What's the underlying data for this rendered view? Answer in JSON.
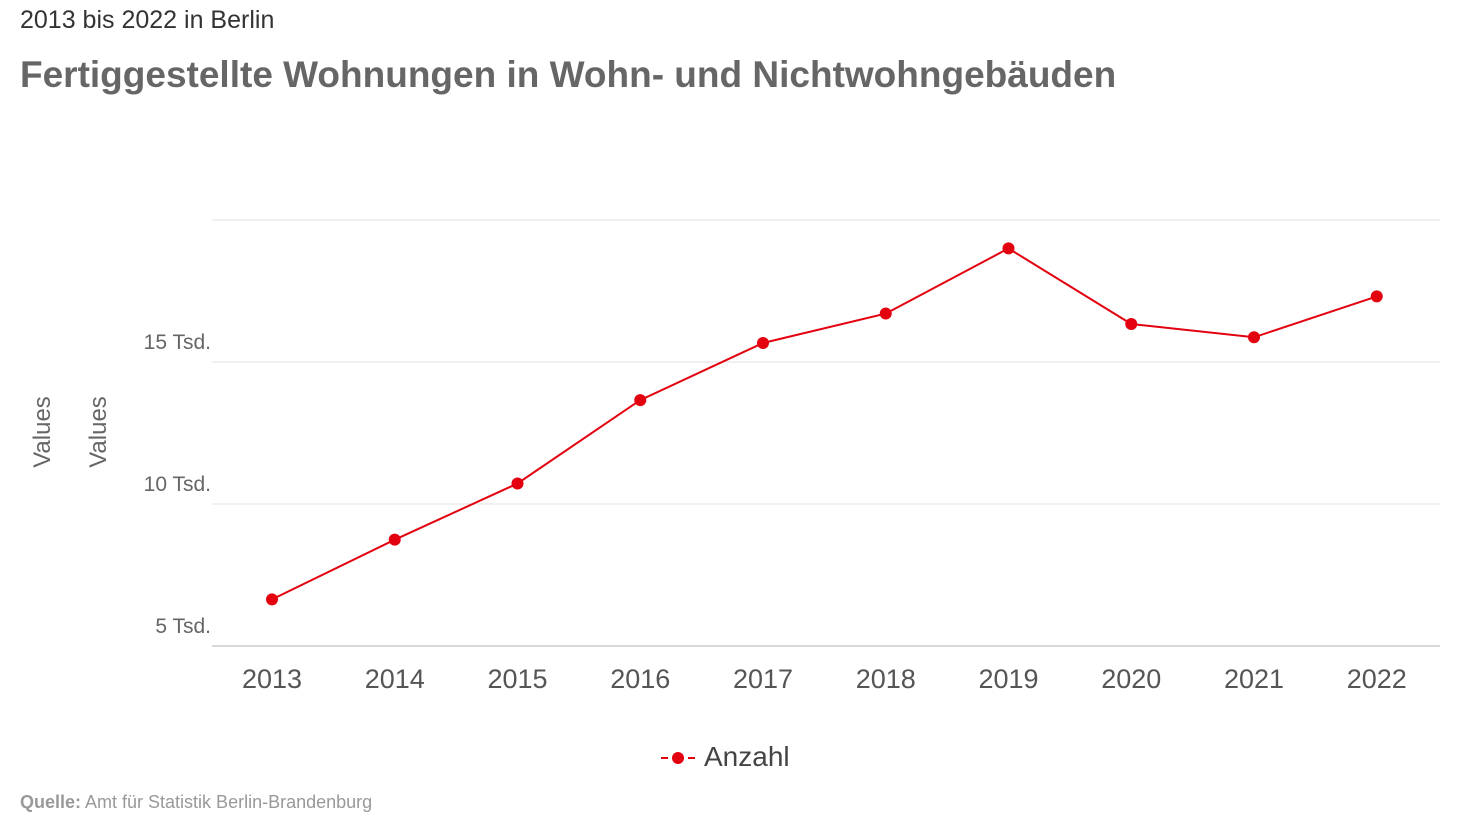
{
  "header": {
    "subtitle": "2013 bis 2022 in Berlin",
    "title": "Fertiggestellte Wohnungen in Wohn- und Nichtwohngebäuden"
  },
  "footer": {
    "source_label": "Quelle:",
    "source_text": "Amt für Statistik Berlin-Brandenburg"
  },
  "chart_data": {
    "type": "line",
    "title": "Fertiggestellte Wohnungen in Wohn- und Nichtwohngebäuden",
    "subtitle": "2013 bis 2022 in Berlin",
    "categories": [
      "2013",
      "2014",
      "2015",
      "2016",
      "2017",
      "2018",
      "2019",
      "2020",
      "2021",
      "2022"
    ],
    "series": [
      {
        "name": "Anzahl",
        "color": "#e3000f",
        "values": [
          6641,
          8744,
          10722,
          13659,
          15669,
          16706,
          18999,
          16337,
          15870,
          17310
        ]
      }
    ],
    "ylabel": "Values",
    "ylabel_secondary": "Values",
    "yticks": [
      5000,
      10000,
      15000
    ],
    "ytick_labels": [
      "5 Tsd.",
      "10 Tsd.",
      "15 Tsd."
    ],
    "ylim": [
      5000,
      20000
    ],
    "grid": true,
    "legend_position": "bottom-center"
  }
}
